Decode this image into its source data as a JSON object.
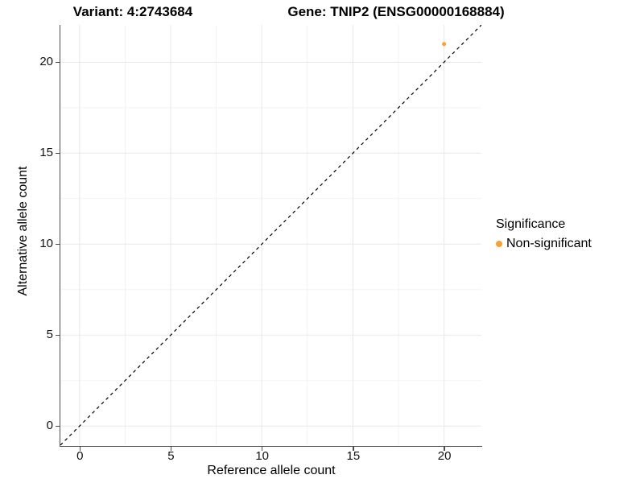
{
  "titles": {
    "variant": "Variant: 4:2743684",
    "gene": "Gene: TNIP2 (ENSG00000168884)"
  },
  "chart_data": {
    "type": "scatter",
    "xlabel": "Reference allele count",
    "ylabel": "Alternative allele count",
    "x_ticks": [
      0,
      5,
      10,
      15,
      20
    ],
    "y_ticks": [
      0,
      5,
      10,
      15,
      20
    ],
    "xlim": [
      -1.05,
      22.05
    ],
    "ylim": [
      -1.05,
      22.05
    ],
    "points": [
      {
        "x": 20,
        "y": 21,
        "series": "Non-significant"
      }
    ],
    "identity_line": {
      "type": "dashed",
      "slope": 1,
      "intercept": 0,
      "color": "#000000"
    },
    "grid": {
      "show_major": true,
      "show_minor": true,
      "major_color": "#e8e8e8",
      "minor_color": "#f3f3f3"
    },
    "legend": {
      "position": "right",
      "title": "Significance",
      "items": [
        {
          "label": "Non-significant",
          "color": "#F9A030"
        }
      ]
    }
  },
  "style_colors": {
    "axis_line": "#4d4d4d",
    "point": "#F9A030",
    "background": "#ffffff"
  }
}
